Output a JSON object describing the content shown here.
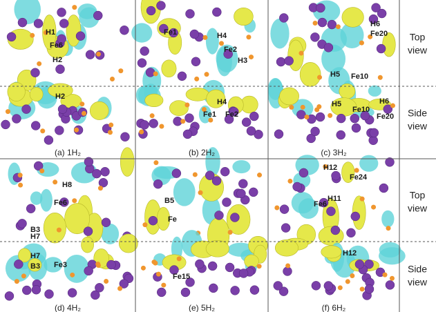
{
  "panels": [
    {
      "caption": "(a) 1H₂",
      "top_labels": [
        "H1",
        "Fe6",
        "H2"
      ],
      "side_labels": [
        "H2"
      ]
    },
    {
      "caption": "(b) 2H₂",
      "top_labels": [
        "Fe1",
        "H4",
        "Fe2",
        "H3"
      ],
      "side_labels": [
        "H4",
        "Fe1",
        "Fe2"
      ]
    },
    {
      "caption": "(c) 3H₂",
      "top_labels": [
        "H6",
        "Fe20",
        "H5",
        "Fe10"
      ],
      "side_labels": [
        "H5",
        "H6",
        "Fe10",
        "Fe20"
      ]
    },
    {
      "caption": "(d) 4H₂",
      "top_labels": [
        "H8",
        "Fe6",
        "B3",
        "H7"
      ],
      "side_labels": [
        "H7",
        "B3",
        "Fe3"
      ]
    },
    {
      "caption": "(e) 5H₂",
      "top_labels": [
        "B5",
        "Fe"
      ],
      "side_labels": [
        "Fe15"
      ]
    },
    {
      "caption": "(f) 6H₂",
      "top_labels": [
        "H12",
        "Fe24",
        "H11",
        "Fe6"
      ],
      "side_labels": [
        "H12"
      ]
    }
  ],
  "view_labels": [
    [
      "Top",
      "view"
    ],
    [
      "Side",
      "view"
    ],
    [
      "Top",
      "view"
    ],
    [
      "Side",
      "view"
    ]
  ]
}
